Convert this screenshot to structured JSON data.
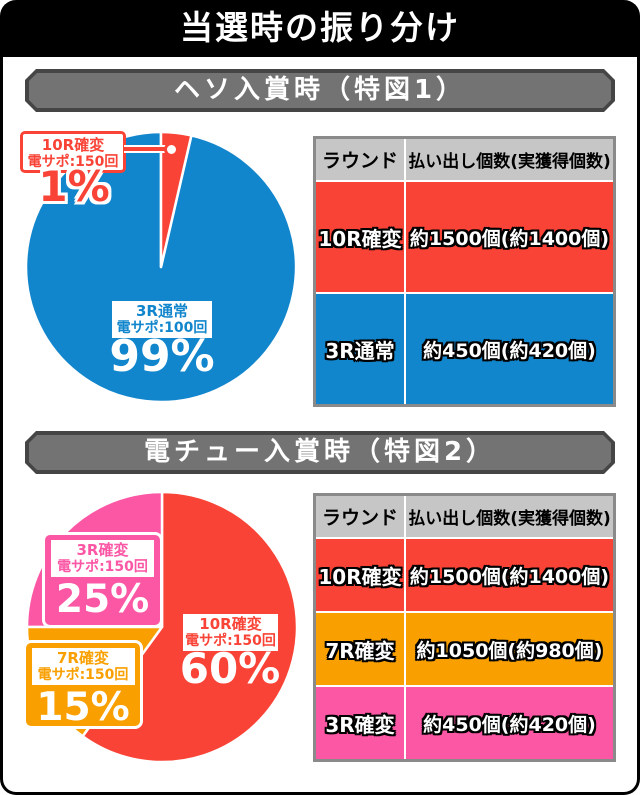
{
  "title": "当選時の振り分け",
  "colors": {
    "red": "#f94336",
    "blue": "#1286cd",
    "pink": "#fb57a5",
    "orange": "#f9a000",
    "table_header_bg": "#c6c6c6",
    "banner_fill": "#737373",
    "banner_border": "#454545",
    "frame": "#000000"
  },
  "chart_data": [
    {
      "type": "pie",
      "title": "ヘソ入賞時（特図1）",
      "legend_position": "on-slice",
      "slices": [
        {
          "name": "10R確変",
          "sub": "電サポ:150回",
          "pct": 1,
          "pct_label": "1%",
          "color": "#f94336",
          "display_start_deg": 0,
          "display_sweep_deg": 13
        },
        {
          "name": "3R通常",
          "sub": "電サポ:100回",
          "pct": 99,
          "pct_label": "99%",
          "color": "#1286cd",
          "display_start_deg": 13,
          "display_sweep_deg": 347
        }
      ]
    },
    {
      "type": "pie",
      "title": "電チュー入賞時（特図2）",
      "legend_position": "on-slice",
      "slices": [
        {
          "name": "10R確変",
          "sub": "電サポ:150回",
          "pct": 60,
          "pct_label": "60%",
          "color": "#f94336",
          "display_start_deg": 0,
          "display_sweep_deg": 216
        },
        {
          "name": "7R確変",
          "sub": "電サポ:150回",
          "pct": 15,
          "pct_label": "15%",
          "color": "#f9a000",
          "display_start_deg": 216,
          "display_sweep_deg": 54
        },
        {
          "name": "3R確変",
          "sub": "電サポ:150回",
          "pct": 25,
          "pct_label": "25%",
          "color": "#fb57a5",
          "display_start_deg": 270,
          "display_sweep_deg": 90
        }
      ]
    }
  ],
  "tables": [
    {
      "headers": [
        "ラウンド",
        "払い出し個数(実獲得個数)"
      ],
      "rows": [
        {
          "round": "10R確変",
          "payout": "約1500個(約1400個)",
          "color": "#f94336"
        },
        {
          "round": "3R通常",
          "payout": "約450個(約420個)",
          "color": "#1286cd"
        }
      ]
    },
    {
      "headers": [
        "ラウンド",
        "払い出し個数(実獲得個数)"
      ],
      "rows": [
        {
          "round": "10R確変",
          "payout": "約1500個(約1400個)",
          "color": "#f94336"
        },
        {
          "round": "7R確変",
          "payout": "約1050個(約980個)",
          "color": "#f9a000"
        },
        {
          "round": "3R確変",
          "payout": "約450個(約420個)",
          "color": "#fb57a5"
        }
      ]
    }
  ]
}
